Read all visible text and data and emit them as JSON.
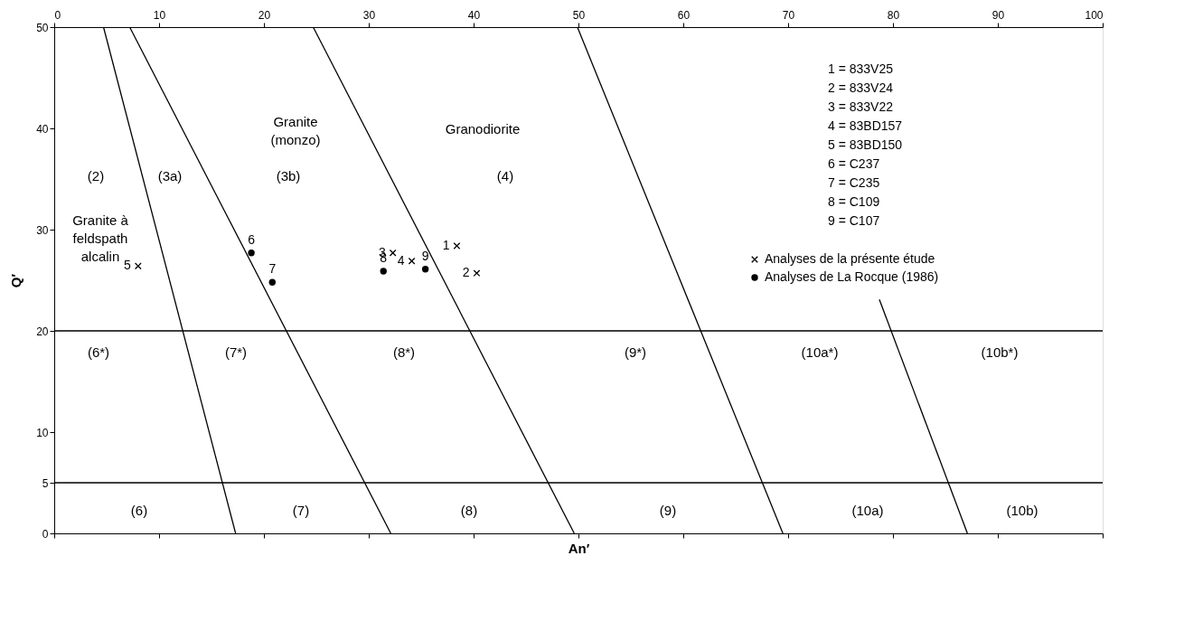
{
  "chart_data": {
    "type": "scatter",
    "xlabel": "An′",
    "ylabel": "Q′",
    "xlim": [
      0,
      100
    ],
    "xticks": [
      0,
      10,
      20,
      30,
      40,
      50,
      60,
      70,
      80,
      90,
      100
    ],
    "ylim": [
      0,
      50
    ],
    "yticks": [
      0,
      5,
      10,
      20,
      30,
      40,
      50
    ],
    "grid": false,
    "legend": "right",
    "series": [
      {
        "name": "Analyses de la présente étude",
        "marker": "cross",
        "color": "#000000",
        "x": [
          38.4,
          40.3,
          32.3,
          34.1,
          8.0
        ],
        "values": [
          28.4,
          25.7,
          27.7,
          26.9,
          26.4
        ]
      },
      {
        "name": "Analyses de La Rocque (1986)",
        "marker": "circle",
        "color": "#000000",
        "x": [
          18.8,
          20.8,
          31.4,
          35.4
        ],
        "values": [
          27.7,
          24.8,
          25.9,
          26.1
        ]
      },
      {
        "type": "line",
        "color": "#000000",
        "x": [
          4.7,
          17.3
        ],
        "values": [
          50,
          0
        ]
      },
      {
        "type": "line",
        "color": "#000000",
        "x": [
          7.2,
          32.1
        ],
        "values": [
          50,
          0
        ]
      },
      {
        "type": "line",
        "color": "#000000",
        "x": [
          24.7,
          49.6
        ],
        "values": [
          50,
          0
        ]
      },
      {
        "type": "line",
        "color": "#000000",
        "x": [
          49.9,
          69.5
        ],
        "values": [
          50,
          0
        ]
      },
      {
        "type": "line",
        "color": "#000000",
        "x": [
          78.7,
          87.1
        ],
        "values": [
          23.1,
          0
        ]
      }
    ],
    "ref_lines": [
      {
        "axis": "y",
        "value": 20,
        "color": "#000000"
      },
      {
        "axis": "y",
        "value": 5,
        "color": "#000000"
      }
    ],
    "annotations": [
      {
        "text": "1",
        "x": 38.4,
        "y": 28.4
      },
      {
        "text": "2",
        "x": 40.3,
        "y": 25.7
      },
      {
        "text": "3",
        "x": 32.3,
        "y": 27.7
      },
      {
        "text": "4",
        "x": 34.1,
        "y": 26.9
      },
      {
        "text": "5",
        "x": 8.0,
        "y": 26.4
      },
      {
        "text": "6",
        "x": 18.8,
        "y": 27.7
      },
      {
        "text": "7",
        "x": 20.8,
        "y": 24.8
      },
      {
        "text": "8",
        "x": 31.4,
        "y": 25.9
      },
      {
        "text": "9",
        "x": 35.4,
        "y": 26.1
      },
      "(2)",
      "(3a)",
      "(3b)",
      "(4)",
      "Granite\n(monzo)",
      "Granodiorite",
      "Granite à\nfeldspath\nalcalin",
      "(6*)",
      "(7*)",
      "(8*)",
      "(9*)",
      "(10a*)",
      "(10b*)",
      "(6)",
      "(7)",
      "(8)",
      "(9)",
      "(10a)",
      "(10b)",
      "1 = 833V25",
      "2 = 833V24",
      "3 = 833V22",
      "4 = 83BD157",
      "5 = 83BD150",
      "6 = C237",
      "7 = C235",
      "8 = C109",
      "9 = C107"
    ]
  }
}
